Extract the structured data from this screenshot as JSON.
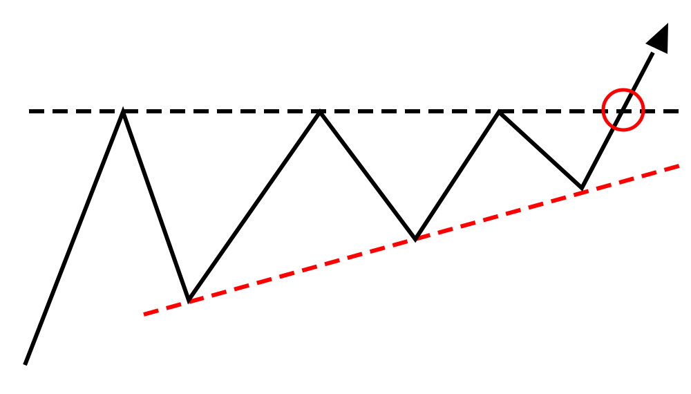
{
  "diagram": {
    "pattern": "ascending-triangle-breakout",
    "colors": {
      "background": "#ffffff",
      "price_line": "#000000",
      "resistance_line": "#000000",
      "support_line": "#ff0000",
      "breakout_marker": "#ff0000"
    },
    "price_path": {
      "style": "solid",
      "arrowhead_at_end": true,
      "point_count": 9
    },
    "resistance": {
      "style": "dashed",
      "orientation": "horizontal"
    },
    "support": {
      "style": "dashed",
      "orientation": "rising"
    },
    "breakout_marker": {
      "shape": "circle",
      "fill": "none"
    }
  }
}
